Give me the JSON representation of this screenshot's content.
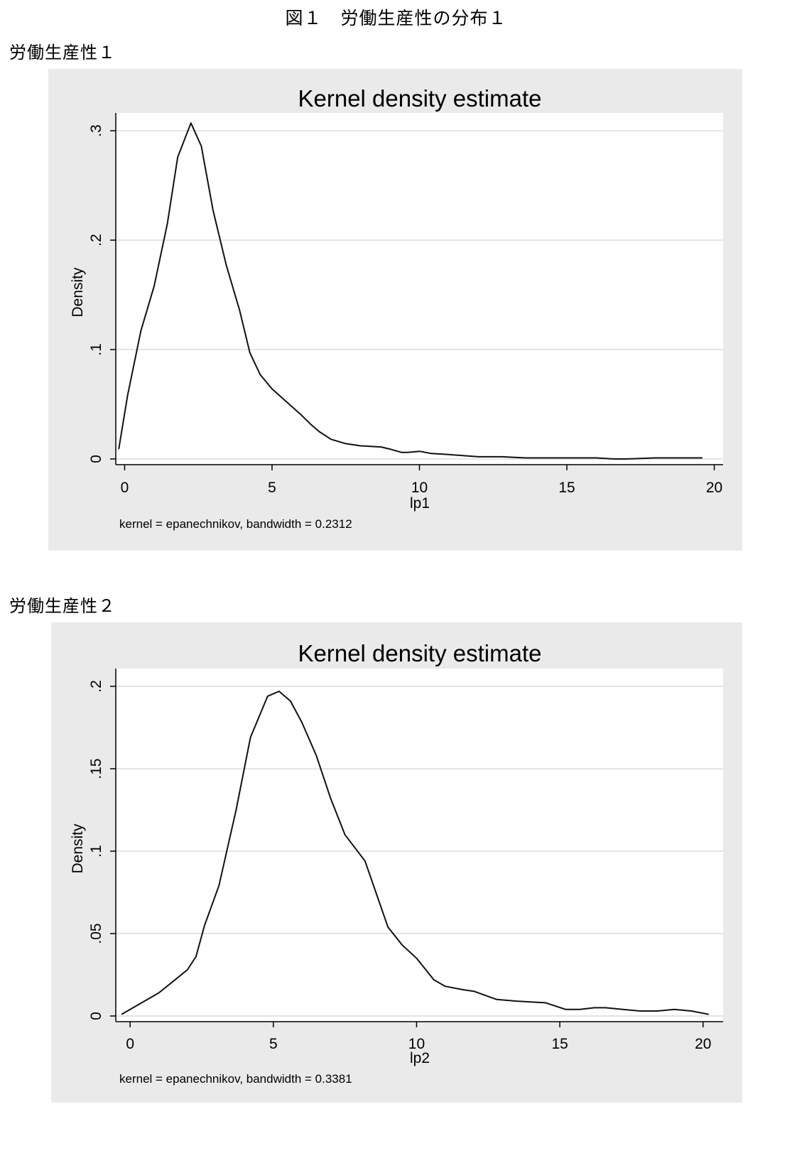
{
  "figure_title": "図１　労働生産性の分布１",
  "chart_data": [
    {
      "section_label": "労働生産性１",
      "type": "line",
      "title": "Kernel density estimate",
      "xlabel": "lp1",
      "ylabel": "Density",
      "note": "kernel = epanechnikov, bandwidth = 0.2312",
      "xlim": [
        -0.3,
        20.3
      ],
      "ylim": [
        0,
        0.3
      ],
      "xticks": [
        0,
        5,
        10,
        15,
        20
      ],
      "xtick_labels": [
        "0",
        "5",
        "10",
        "15",
        "20"
      ],
      "yticks": [
        0,
        0.1,
        0.2,
        0.3
      ],
      "ytick_labels": [
        "0",
        ".1",
        ".2",
        ".3"
      ],
      "grid": true,
      "series": [
        {
          "x": [
            -0.2,
            0.1,
            0.55,
            1.0,
            1.45,
            1.8,
            2.25,
            2.6,
            3.0,
            3.45,
            3.9,
            4.25,
            4.6,
            5.0,
            5.5,
            6.0,
            6.3,
            6.6,
            7.0,
            7.5,
            8.0,
            8.7,
            9.0,
            9.4,
            9.6,
            10.0,
            10.4,
            11.0,
            12.0,
            12.8,
            13.6,
            14.5,
            15.0,
            16.0,
            16.6,
            17.0,
            18.0,
            18.5,
            19.0,
            19.6
          ],
          "y": [
            0.009,
            0.058,
            0.117,
            0.158,
            0.215,
            0.276,
            0.307,
            0.286,
            0.227,
            0.177,
            0.136,
            0.097,
            0.077,
            0.064,
            0.052,
            0.04,
            0.032,
            0.025,
            0.018,
            0.014,
            0.012,
            0.011,
            0.009,
            0.006,
            0.006,
            0.007,
            0.005,
            0.004,
            0.002,
            0.002,
            0.001,
            0.001,
            0.001,
            0.001,
            0.0,
            0.0,
            0.001,
            0.001,
            0.001,
            0.001
          ]
        }
      ]
    },
    {
      "section_label": "労働生産性２",
      "type": "line",
      "title": "Kernel density estimate",
      "xlabel": "lp2",
      "ylabel": "Density",
      "note": "kernel = epanechnikov, bandwidth = 0.3381",
      "xlim": [
        -0.5,
        20.7
      ],
      "ylim": [
        0,
        0.2
      ],
      "xticks": [
        0,
        5,
        10,
        15,
        20
      ],
      "xtick_labels": [
        "0",
        "5",
        "10",
        "15",
        "20"
      ],
      "yticks": [
        0,
        0.05,
        0.1,
        0.15,
        0.2
      ],
      "ytick_labels": [
        "0",
        ".05",
        ".1",
        ".15",
        ".2"
      ],
      "grid": true,
      "series": [
        {
          "x": [
            -0.3,
            0.3,
            1.0,
            1.5,
            2.0,
            2.3,
            2.6,
            3.1,
            3.7,
            4.2,
            4.8,
            5.2,
            5.6,
            6.0,
            6.5,
            7.0,
            7.5,
            8.2,
            9.0,
            9.5,
            10.0,
            10.6,
            11.0,
            11.6,
            12.0,
            12.8,
            13.5,
            14.5,
            15.2,
            15.7,
            16.2,
            16.6,
            17.2,
            17.8,
            18.4,
            19.0,
            19.6,
            20.2
          ],
          "y": [
            0.001,
            0.007,
            0.014,
            0.021,
            0.028,
            0.036,
            0.055,
            0.079,
            0.125,
            0.169,
            0.194,
            0.197,
            0.191,
            0.178,
            0.158,
            0.132,
            0.11,
            0.094,
            0.054,
            0.043,
            0.035,
            0.022,
            0.018,
            0.016,
            0.015,
            0.01,
            0.009,
            0.008,
            0.004,
            0.004,
            0.005,
            0.005,
            0.004,
            0.003,
            0.003,
            0.004,
            0.003,
            0.001
          ]
        }
      ]
    }
  ]
}
